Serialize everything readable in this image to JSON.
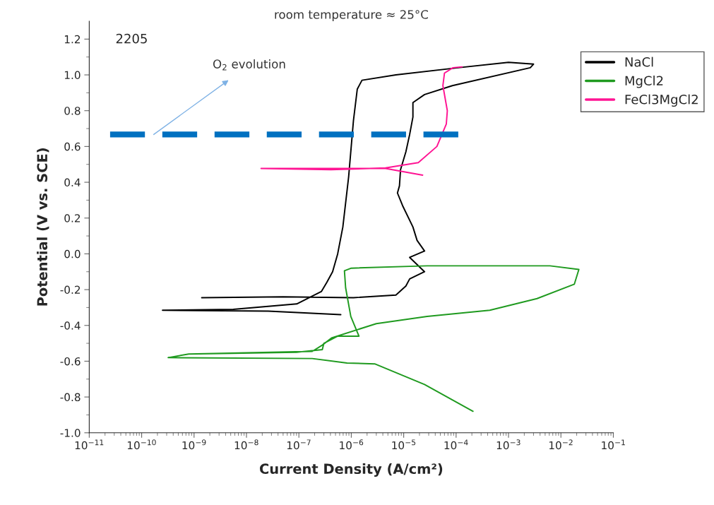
{
  "chart_data": {
    "type": "line",
    "title": "room temperature ≈ 25°C",
    "xlabel": "Current Density (A/cm²)",
    "ylabel": "Potential (V vs. SCE)",
    "log": "x",
    "xlim": [
      1e-11,
      0.1
    ],
    "ylim": [
      -1.0,
      1.3
    ],
    "xticks": [
      {
        "value": 1e-11,
        "label": "10$^{−11}$"
      },
      {
        "value": 1e-10,
        "label": "10$^{−10}$"
      },
      {
        "value": 1e-09,
        "label": "10$^{−9}$"
      },
      {
        "value": 1e-08,
        "label": "10$^{−8}$"
      },
      {
        "value": 1e-07,
        "label": "10$^{−7}$"
      },
      {
        "value": 1e-06,
        "label": "10$^{−6}$"
      },
      {
        "value": 1e-05,
        "label": "10$^{−5}$"
      },
      {
        "value": 0.0001,
        "label": "10$^{−4}$"
      },
      {
        "value": 0.001,
        "label": "10$^{−3}$"
      },
      {
        "value": 0.01,
        "label": "10$^{−2}$"
      },
      {
        "value": 0.1,
        "label": "10$^{−1}$"
      }
    ],
    "yticks": [
      {
        "value": -1.0,
        "label": "-1.0"
      },
      {
        "value": -0.8,
        "label": "-0.8"
      },
      {
        "value": -0.6,
        "label": "-0.6"
      },
      {
        "value": -0.4,
        "label": "-0.4"
      },
      {
        "value": -0.2,
        "label": "-0.2"
      },
      {
        "value": 0.0,
        "label": "0.0"
      },
      {
        "value": 0.2,
        "label": "0.2"
      },
      {
        "value": 0.4,
        "label": "0.4"
      },
      {
        "value": 0.6,
        "label": "0.6"
      },
      {
        "value": 0.8,
        "label": "0.8"
      },
      {
        "value": 1.0,
        "label": "1.0"
      },
      {
        "value": 1.2,
        "label": "1.2"
      }
    ],
    "grid": false,
    "legend": "top right",
    "marker": "none",
    "annotations": [
      "2205",
      {
        "text": "O$_{2}$ evolution",
        "x": 1.7e-10,
        "y": 0.667
      }
    ],
    "series": [
      {
        "name": "NaCl",
        "color": "#000000",
        "x": [
          6.3e-07,
          2.6e-08,
          2.5e-10,
          5.6e-09,
          9.1e-08,
          2.7e-07,
          3.4e-07,
          4.4e-07,
          5.5e-07,
          6.9e-07,
          8.9e-07,
          1.1e-06,
          1.3e-06,
          1.6e-06,
          7.1e-06,
          0.00011,
          0.001,
          0.003,
          0.0026,
          8.5e-05,
          2.5e-05,
          1.5e-05,
          1.5e-05,
          1.3e-05,
          1.1e-05,
          8.7e-06,
          8.3e-06,
          7.6e-06,
          9.5e-06,
          1.5e-05,
          1.8e-05,
          2.5e-05,
          1.3e-05,
          2.5e-05,
          1.3e-05,
          1.1e-05,
          7.1e-06,
          1.1e-06,
          5e-08,
          1.4e-09
        ],
        "values": [
          -0.34,
          -0.32,
          -0.315,
          -0.31,
          -0.28,
          -0.21,
          -0.16,
          -0.1,
          0.0,
          0.15,
          0.43,
          0.745,
          0.92,
          0.97,
          1.0,
          1.04,
          1.07,
          1.06,
          1.04,
          0.94,
          0.89,
          0.845,
          0.765,
          0.667,
          0.57,
          0.47,
          0.38,
          0.34,
          0.27,
          0.15,
          0.075,
          0.016,
          -0.02,
          -0.1,
          -0.14,
          -0.18,
          -0.23,
          -0.245,
          -0.24,
          -0.245
        ]
      },
      {
        "name": "MgCl2",
        "color": "#1f9a1f",
        "x": [
          0.00021,
          2.5e-05,
          2.8e-06,
          8.3e-07,
          1.8e-07,
          3.2e-10,
          7.9e-10,
          9.1e-08,
          2.8e-07,
          3e-07,
          5.5e-07,
          1.4e-06,
          9.8e-07,
          7.8e-07,
          7.4e-07,
          1e-06,
          2.8e-05,
          0.0062,
          0.022,
          0.018,
          0.0035,
          0.00044,
          2.8e-05,
          3e-06,
          4.2e-07,
          2.8e-07,
          1.8e-07,
          7.9e-10
        ],
        "values": [
          -0.88,
          -0.73,
          -0.615,
          -0.61,
          -0.585,
          -0.58,
          -0.56,
          -0.55,
          -0.535,
          -0.5,
          -0.46,
          -0.46,
          -0.35,
          -0.19,
          -0.095,
          -0.08,
          -0.067,
          -0.067,
          -0.087,
          -0.17,
          -0.25,
          -0.315,
          -0.35,
          -0.39,
          -0.47,
          -0.51,
          -0.545,
          -0.56
        ]
      },
      {
        "name": "FeCl3MgCl2",
        "color": "#ff1493",
        "x": [
          2.3e-05,
          4.5e-06,
          1.9e-08,
          4.1e-07,
          4.5e-06,
          1.9e-05,
          4.3e-05,
          6.5e-05,
          6.8e-05,
          5.6e-05,
          6e-05,
          8.7e-05,
          0.00013
        ],
        "values": [
          0.44,
          0.477,
          0.477,
          0.47,
          0.48,
          0.51,
          0.6,
          0.725,
          0.8,
          0.94,
          1.01,
          1.04,
          1.045
        ]
      },
      {
        "color": "#0070c0",
        "line_style": "dashed",
        "x": [
          2.5e-11,
          0.00011
        ],
        "values": [
          0.667,
          0.667
        ]
      }
    ]
  }
}
